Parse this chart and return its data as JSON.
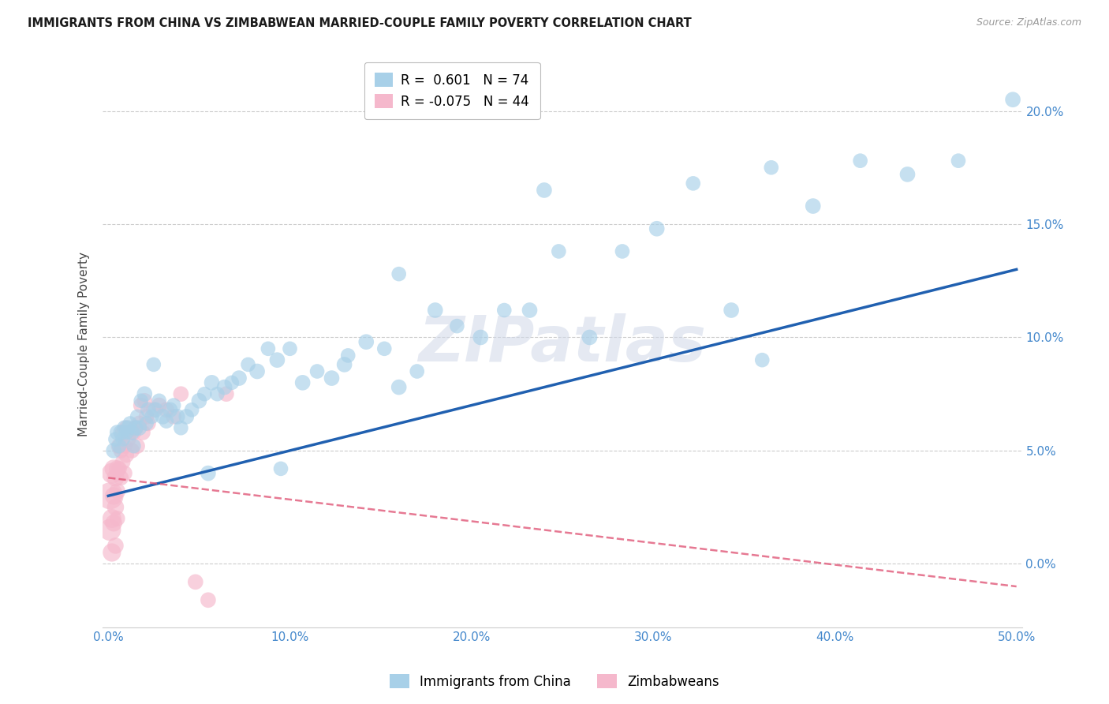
{
  "title": "IMMIGRANTS FROM CHINA VS ZIMBABWEAN MARRIED-COUPLE FAMILY POVERTY CORRELATION CHART",
  "source": "Source: ZipAtlas.com",
  "xlabel_blue": "Immigrants from China",
  "xlabel_pink": "Zimbabweans",
  "ylabel": "Married-Couple Family Poverty",
  "xlim": [
    -0.003,
    0.503
  ],
  "ylim": [
    -0.028,
    0.222
  ],
  "xticks": [
    0.0,
    0.1,
    0.2,
    0.3,
    0.4,
    0.5
  ],
  "yticks": [
    0.0,
    0.05,
    0.1,
    0.15,
    0.2
  ],
  "ytick_labels": [
    "0.0%",
    "5.0%",
    "10.0%",
    "15.0%",
    "20.0%"
  ],
  "xtick_labels": [
    "0.0%",
    "10.0%",
    "20.0%",
    "30.0%",
    "40.0%",
    "50.0%"
  ],
  "legend_blue_r": "R =  0.601",
  "legend_blue_n": "N = 74",
  "legend_pink_r": "R = -0.075",
  "legend_pink_n": "N = 44",
  "blue_color": "#a8d0e8",
  "pink_color": "#f5b8cc",
  "blue_line_color": "#2060b0",
  "pink_line_color": "#e05878",
  "grid_color": "#cccccc",
  "watermark": "ZIPatlas",
  "blue_line_x0": 0.0,
  "blue_line_y0": 0.03,
  "blue_line_x1": 0.5,
  "blue_line_y1": 0.13,
  "pink_line_x0": 0.0,
  "pink_line_y0": 0.038,
  "pink_line_x1": 0.5,
  "pink_line_y1": -0.01,
  "blue_x": [
    0.003,
    0.004,
    0.005,
    0.006,
    0.007,
    0.008,
    0.009,
    0.01,
    0.011,
    0.012,
    0.013,
    0.014,
    0.015,
    0.016,
    0.017,
    0.018,
    0.02,
    0.021,
    0.022,
    0.024,
    0.026,
    0.028,
    0.03,
    0.032,
    0.034,
    0.036,
    0.038,
    0.04,
    0.043,
    0.046,
    0.05,
    0.053,
    0.057,
    0.06,
    0.064,
    0.068,
    0.072,
    0.077,
    0.082,
    0.088,
    0.093,
    0.1,
    0.107,
    0.115,
    0.123,
    0.132,
    0.142,
    0.152,
    0.16,
    0.17,
    0.18,
    0.192,
    0.205,
    0.218,
    0.232,
    0.248,
    0.265,
    0.283,
    0.302,
    0.322,
    0.343,
    0.365,
    0.388,
    0.414,
    0.44,
    0.468,
    0.498,
    0.025,
    0.055,
    0.095,
    0.13,
    0.16,
    0.24,
    0.36
  ],
  "blue_y": [
    0.05,
    0.055,
    0.058,
    0.052,
    0.058,
    0.055,
    0.06,
    0.058,
    0.06,
    0.062,
    0.058,
    0.052,
    0.06,
    0.065,
    0.06,
    0.072,
    0.075,
    0.062,
    0.068,
    0.065,
    0.068,
    0.072,
    0.065,
    0.063,
    0.068,
    0.07,
    0.065,
    0.06,
    0.065,
    0.068,
    0.072,
    0.075,
    0.08,
    0.075,
    0.078,
    0.08,
    0.082,
    0.088,
    0.085,
    0.095,
    0.09,
    0.095,
    0.08,
    0.085,
    0.082,
    0.092,
    0.098,
    0.095,
    0.078,
    0.085,
    0.112,
    0.105,
    0.1,
    0.112,
    0.112,
    0.138,
    0.1,
    0.138,
    0.148,
    0.168,
    0.112,
    0.175,
    0.158,
    0.178,
    0.172,
    0.178,
    0.205,
    0.088,
    0.04,
    0.042,
    0.088,
    0.128,
    0.165,
    0.09
  ],
  "blue_sizes": [
    200,
    180,
    200,
    180,
    200,
    180,
    200,
    180,
    200,
    180,
    200,
    180,
    200,
    180,
    200,
    180,
    200,
    180,
    200,
    180,
    200,
    180,
    200,
    180,
    200,
    180,
    200,
    180,
    200,
    180,
    200,
    180,
    200,
    180,
    200,
    180,
    200,
    180,
    200,
    180,
    200,
    180,
    200,
    180,
    200,
    180,
    200,
    180,
    200,
    180,
    200,
    180,
    200,
    180,
    200,
    180,
    200,
    180,
    200,
    180,
    200,
    180,
    200,
    180,
    200,
    180,
    200,
    180,
    200,
    180,
    200,
    180,
    200,
    180
  ],
  "pink_x": [
    0.001,
    0.001,
    0.002,
    0.002,
    0.002,
    0.003,
    0.003,
    0.003,
    0.004,
    0.004,
    0.004,
    0.005,
    0.005,
    0.005,
    0.006,
    0.006,
    0.007,
    0.007,
    0.008,
    0.008,
    0.009,
    0.009,
    0.01,
    0.01,
    0.011,
    0.012,
    0.013,
    0.014,
    0.015,
    0.016,
    0.017,
    0.018,
    0.019,
    0.02,
    0.021,
    0.022,
    0.025,
    0.028,
    0.032,
    0.036,
    0.04,
    0.048,
    0.055,
    0.065
  ],
  "pink_y": [
    0.03,
    0.015,
    0.04,
    0.02,
    0.005,
    0.042,
    0.03,
    0.018,
    0.038,
    0.025,
    0.008,
    0.042,
    0.032,
    0.02,
    0.052,
    0.042,
    0.05,
    0.038,
    0.058,
    0.045,
    0.052,
    0.04,
    0.06,
    0.048,
    0.055,
    0.058,
    0.05,
    0.058,
    0.06,
    0.052,
    0.062,
    0.07,
    0.058,
    0.072,
    0.065,
    0.062,
    0.068,
    0.07,
    0.068,
    0.065,
    0.075,
    -0.008,
    -0.016,
    0.075
  ],
  "pink_sizes": [
    600,
    400,
    350,
    300,
    280,
    280,
    260,
    240,
    260,
    240,
    220,
    240,
    220,
    200,
    220,
    200,
    200,
    200,
    200,
    200,
    200,
    200,
    200,
    200,
    200,
    200,
    200,
    200,
    200,
    200,
    200,
    200,
    200,
    200,
    200,
    200,
    200,
    200,
    200,
    200,
    200,
    200,
    200,
    200
  ]
}
